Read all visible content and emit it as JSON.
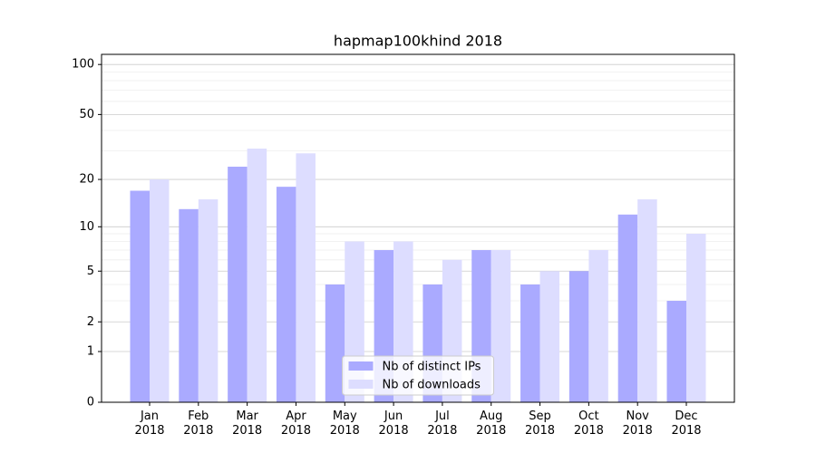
{
  "chart_data": {
    "type": "bar",
    "title": "hapmap100khind 2018",
    "categories": [
      "Jan\n2018",
      "Feb\n2018",
      "Mar\n2018",
      "Apr\n2018",
      "May\n2018",
      "Jun\n2018",
      "Jul\n2018",
      "Aug\n2018",
      "Sep\n2018",
      "Oct\n2018",
      "Nov\n2018",
      "Dec\n2018"
    ],
    "series": [
      {
        "name": "Nb of distinct IPs",
        "color": "#aaaaff",
        "values": [
          17,
          13,
          24,
          18,
          4,
          7,
          4,
          7,
          4,
          5,
          12,
          3
        ]
      },
      {
        "name": "Nb of downloads",
        "color": "#ddddff",
        "values": [
          20,
          15,
          31,
          29,
          8,
          8,
          6,
          7,
          5,
          7,
          15,
          9
        ]
      }
    ],
    "yscale": "log1p",
    "ylim": [
      0,
      115
    ],
    "yticks": [
      0,
      1,
      2,
      5,
      10,
      20,
      50,
      100
    ],
    "minor_yticks": [
      3,
      4,
      6,
      7,
      8,
      9,
      30,
      40,
      60,
      70,
      80,
      90
    ],
    "grid": true,
    "legend": "lower center"
  }
}
